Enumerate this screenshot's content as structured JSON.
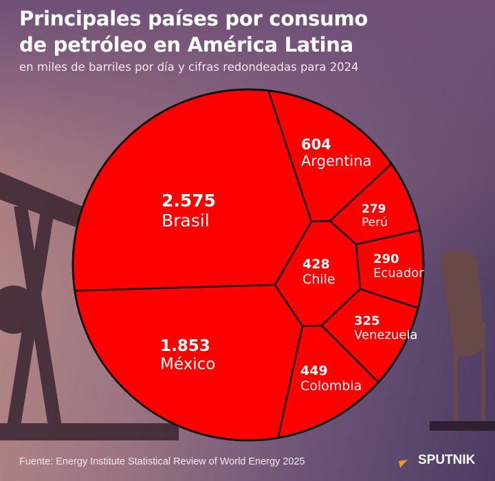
{
  "title_line1": "Principales países por consumo",
  "title_line2": "de petróleo en América Latina",
  "subtitle": "en miles de barriles por día y cifras redondeadas para 2024",
  "source": "Fuente: Energy Institute Statistical Review of World Energy 2025",
  "brand": "SPUTNIK",
  "colors": {
    "cell": "#ff0000",
    "border": "#111111",
    "brand_accent": "#f7941d"
  },
  "chart_data": {
    "type": "voronoi-treemap",
    "title": "Principales países por consumo de petróleo en América Latina",
    "unit": "miles de barriles por día",
    "cells": [
      {
        "name": "Brasil",
        "value": 2575,
        "label": "2.575"
      },
      {
        "name": "México",
        "value": 1853,
        "label": "1.853"
      },
      {
        "name": "Argentina",
        "value": 604,
        "label": "604"
      },
      {
        "name": "Colombia",
        "value": 449,
        "label": "449"
      },
      {
        "name": "Chile",
        "value": 428,
        "label": "428"
      },
      {
        "name": "Venezuela",
        "value": 325,
        "label": "325"
      },
      {
        "name": "Ecuador",
        "value": 290,
        "label": "290"
      },
      {
        "name": "Perú",
        "value": 279,
        "label": "279"
      }
    ]
  }
}
